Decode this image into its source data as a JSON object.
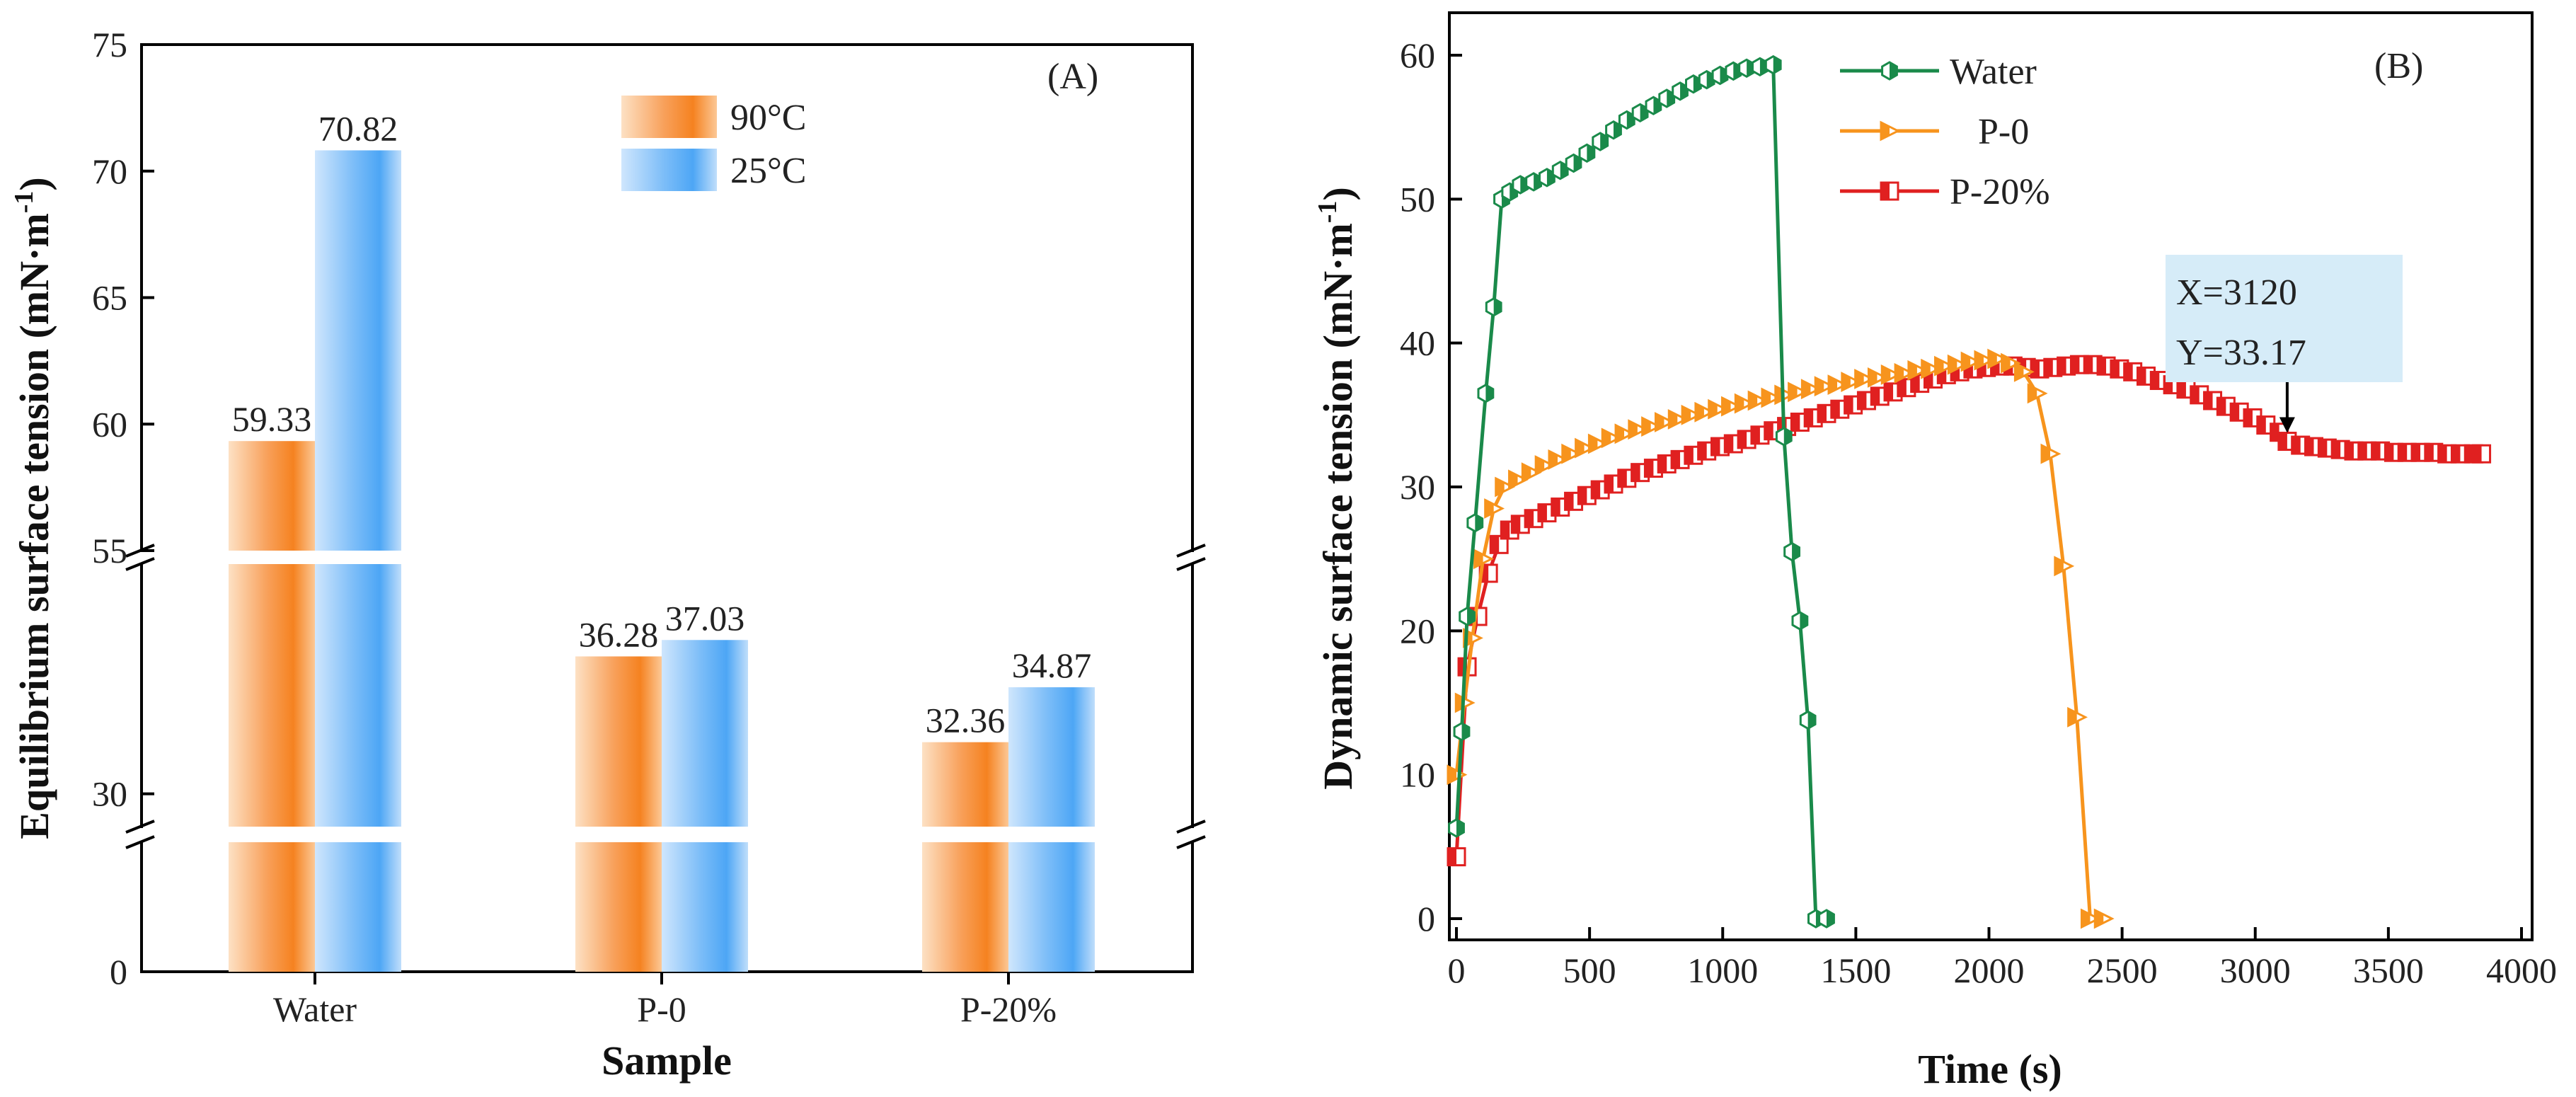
{
  "chart_data": [
    {
      "panel": "(A)",
      "type": "bar",
      "title": "",
      "xlabel": "Sample",
      "ylabel": "Equilibrium surface tension (mN·m",
      "ylabel_sup": "-1",
      "ylabel_close": ")",
      "categories": [
        "Water",
        "P-0",
        "P-20%"
      ],
      "series": [
        {
          "name": "90°C",
          "color": "#f58220",
          "values": [
            59.33,
            36.28,
            32.36
          ],
          "labels": [
            "59.33",
            "36.28",
            "32.36"
          ]
        },
        {
          "name": "25°C",
          "color": "#4da6f5",
          "values": [
            70.82,
            37.03,
            34.87
          ],
          "labels": [
            "70.82",
            "37.03",
            "34.87"
          ]
        }
      ],
      "broken_axis": {
        "segments": [
          {
            "from": 0,
            "to": 28.5
          },
          {
            "from": 28.5,
            "to": 40.5
          },
          {
            "from": 55,
            "to": 75
          }
        ]
      },
      "yticks": [
        {
          "value": 0,
          "label": "0"
        },
        {
          "value": 30,
          "label": "30"
        },
        {
          "value": 55,
          "label": "55"
        },
        {
          "value": 60,
          "label": "60"
        },
        {
          "value": 65,
          "label": "65"
        },
        {
          "value": 70,
          "label": "70"
        },
        {
          "value": 75,
          "label": "75"
        }
      ],
      "legend_position": "top-center"
    },
    {
      "panel": "(B)",
      "type": "line",
      "title": "",
      "xlabel": "Time (s)",
      "ylabel": "Dynamic surface tension (mN·m",
      "ylabel_sup": "-1",
      "ylabel_close": ")",
      "xlim": [
        0,
        4000
      ],
      "ylim": [
        -1,
        62
      ],
      "xticks": [
        0,
        500,
        1000,
        1500,
        2000,
        2500,
        3000,
        3500,
        4000
      ],
      "yticks": [
        0,
        10,
        20,
        30,
        40,
        50,
        60
      ],
      "legend_position": "top-left",
      "series": [
        {
          "name": "Water",
          "color": "#1a8a4a",
          "marker": "hexagon",
          "x": [
            0,
            20,
            40,
            70,
            110,
            140,
            170,
            200,
            240,
            290,
            340,
            390,
            440,
            490,
            540,
            590,
            640,
            690,
            740,
            790,
            840,
            890,
            940,
            990,
            1040,
            1090,
            1140,
            1190,
            1230,
            1260,
            1290,
            1320,
            1350,
            1390
          ],
          "y": [
            6.3,
            13,
            21,
            27.5,
            36.5,
            42.5,
            50,
            50.5,
            51,
            51.2,
            51.5,
            52,
            52.5,
            53.2,
            54,
            54.8,
            55.5,
            56,
            56.5,
            57,
            57.5,
            58,
            58.3,
            58.6,
            58.9,
            59.1,
            59.2,
            59.33,
            33.5,
            25.5,
            20.7,
            13.8,
            0,
            0
          ]
        },
        {
          "name": "P-0",
          "color": "#f7941d",
          "marker": "triangle-right",
          "x": [
            0,
            30,
            60,
            100,
            140,
            180,
            230,
            280,
            330,
            380,
            430,
            480,
            530,
            580,
            630,
            680,
            730,
            780,
            830,
            880,
            930,
            980,
            1030,
            1080,
            1130,
            1180,
            1230,
            1280,
            1330,
            1380,
            1430,
            1480,
            1530,
            1580,
            1630,
            1680,
            1730,
            1780,
            1830,
            1880,
            1930,
            1980,
            2030,
            2080,
            2130,
            2180,
            2230,
            2280,
            2330,
            2380,
            2430
          ],
          "y": [
            10,
            15,
            19.5,
            25,
            28.5,
            30,
            30.5,
            31,
            31.5,
            31.9,
            32.3,
            32.7,
            33,
            33.4,
            33.7,
            34,
            34.2,
            34.5,
            34.7,
            35,
            35.2,
            35.4,
            35.6,
            35.8,
            36,
            36.2,
            36.4,
            36.6,
            36.8,
            37,
            37.1,
            37.3,
            37.5,
            37.6,
            37.8,
            37.9,
            38.1,
            38.2,
            38.4,
            38.5,
            38.7,
            38.8,
            38.9,
            38.6,
            38,
            36.5,
            32.3,
            24.5,
            14,
            0,
            0
          ]
        },
        {
          "name": "P-20%",
          "color": "#e02020",
          "marker": "square",
          "x": [
            0,
            40,
            80,
            120,
            160,
            200,
            240,
            290,
            340,
            390,
            440,
            490,
            540,
            590,
            640,
            690,
            740,
            790,
            840,
            890,
            940,
            990,
            1040,
            1090,
            1140,
            1190,
            1240,
            1290,
            1340,
            1390,
            1440,
            1490,
            1540,
            1590,
            1640,
            1690,
            1740,
            1790,
            1840,
            1890,
            1940,
            1990,
            2040,
            2090,
            2140,
            2190,
            2240,
            2290,
            2340,
            2390,
            2440,
            2490,
            2540,
            2590,
            2640,
            2690,
            2740,
            2790,
            2840,
            2890,
            2940,
            2990,
            3040,
            3090,
            3120,
            3170,
            3220,
            3270,
            3320,
            3370,
            3420,
            3470,
            3520,
            3570,
            3620,
            3670,
            3720,
            3770,
            3820,
            3850
          ],
          "y": [
            4.3,
            17.5,
            21,
            24,
            26,
            27,
            27.4,
            27.8,
            28.2,
            28.6,
            29,
            29.4,
            29.8,
            30.2,
            30.6,
            31,
            31.3,
            31.6,
            31.9,
            32.2,
            32.5,
            32.8,
            33,
            33.3,
            33.6,
            33.9,
            34.2,
            34.5,
            34.8,
            35.1,
            35.4,
            35.7,
            36,
            36.3,
            36.6,
            36.9,
            37.2,
            37.5,
            37.8,
            38,
            38.2,
            38.3,
            38.4,
            38.4,
            38.3,
            38.2,
            38.3,
            38.4,
            38.5,
            38.5,
            38.4,
            38.2,
            38,
            37.7,
            37.4,
            37.1,
            36.8,
            36.4,
            36,
            35.6,
            35.2,
            34.8,
            34.3,
            33.8,
            33.17,
            32.9,
            32.8,
            32.7,
            32.6,
            32.5,
            32.5,
            32.5,
            32.4,
            32.4,
            32.4,
            32.4,
            32.3,
            32.3,
            32.3,
            32.3
          ]
        }
      ],
      "annotation": {
        "line1": "X=3120",
        "line2": "Y=33.17",
        "x": 3120,
        "y": 33.17
      }
    }
  ]
}
